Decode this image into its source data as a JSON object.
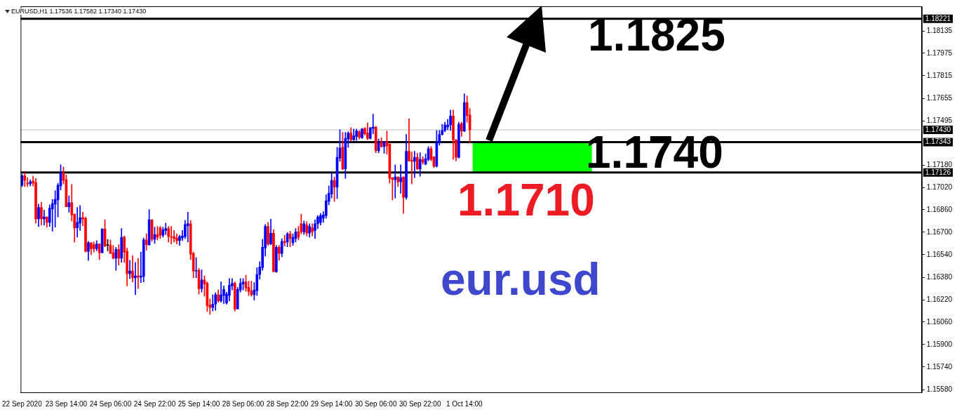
{
  "chart_data": {
    "type": "candlestick",
    "annotations": [
      "EURUSD,H1 1.17536 1.17582 1.17340 1.17430",
      "1.1825",
      "1.1740",
      "1.1710",
      "eur.usd"
    ],
    "colors": [
      "#0000ff",
      "#ff0000",
      "#ff0000",
      "#0000ff",
      "#ff0000",
      "#ff0000",
      "#0000ff",
      "#ff0000",
      "#0000ff",
      "#ff0000",
      "#0000ff",
      "#0000ff",
      "#0000ff",
      "#0000ff",
      "#0000ff",
      "#ff0000",
      "#ff0000",
      "#0000ff",
      "#ff0000",
      "#ff0000",
      "#0000ff",
      "#0000ff",
      "#ff0000",
      "#ff0000",
      "#0000ff",
      "#ff0000",
      "#ff0000",
      "#0000ff",
      "#ff0000",
      "#0000ff",
      "#ff0000",
      "#000000",
      "#ff0000",
      "#ff0000",
      "#0000ff",
      "#ff0000",
      "#0000ff",
      "#ff0000",
      "#ff0000",
      "#0000ff",
      "#ff0000",
      "#0000ff",
      "#ff0000",
      "#0000ff",
      "#0000ff",
      "#ff0000",
      "#0000ff",
      "#ff0000",
      "#0000ff",
      "#ff0000",
      "#ff0000",
      "#0000ff",
      "#0000ff",
      "#ff0000",
      "#ff0000",
      "#ff0000",
      "#ff0000",
      "#0000ff",
      "#0000ff",
      "#0000ff",
      "#0000ff",
      "#ff0000",
      "#ff0000",
      "#0000ff",
      "#ff0000",
      "#0000ff",
      "#ff0000",
      "#ff0000",
      "#ff0000",
      "#0000ff",
      "#0000ff",
      "#ff0000",
      "#0000ff",
      "#0000ff",
      "#0000ff",
      "#0000ff",
      "#0000ff",
      "#ff0000",
      "#0000ff",
      "#0000ff",
      "#0000ff",
      "#ff0000",
      "#ff0000",
      "#ff0000",
      "#0000ff",
      "#0000ff",
      "#0000ff",
      "#0000ff",
      "#0000ff",
      "#ff0000",
      "#0000ff",
      "#ff0000",
      "#0000ff",
      "#ff0000",
      "#0000ff",
      "#ff0000",
      "#0000ff",
      "#ff0000",
      "#0000ff",
      "#0000ff",
      "#ff0000",
      "#ff0000",
      "#0000ff",
      "#ff0000",
      "#0000ff",
      "#ff0000",
      "#0000ff",
      "#0000ff",
      "#0000ff",
      "#0000ff",
      "#0000ff",
      "#0000ff",
      "#0000ff",
      "#ff0000",
      "#0000ff",
      "#0000ff",
      "#ff0000",
      "#0000ff",
      "#0000ff",
      "#ff0000",
      "#0000ff",
      "#0000ff",
      "#ff0000",
      "#0000ff",
      "#ff0000",
      "#ff0000",
      "#0000ff",
      "#0000ff",
      "#ff0000",
      "#0000ff",
      "#ff0000",
      "#0000ff",
      "#ff0000",
      "#ff0000",
      "#ff0000",
      "#0000ff",
      "#ff0000",
      "#0000ff",
      "#ff0000",
      "#0000ff",
      "#ff0000",
      "#ff0000",
      "#0000ff",
      "#ff0000",
      "#0000ff",
      "#ff0000",
      "#0000ff",
      "#0000ff",
      "#ff0000",
      "#ff0000",
      "#0000ff",
      "#0000ff",
      "#0000ff",
      "#0000ff",
      "#0000ff",
      "#0000ff",
      "#ff0000",
      "#ff0000",
      "#0000ff",
      "#ff0000",
      "#0000ff",
      "#ff0000",
      "#ff0000",
      null,
      null,
      null,
      null,
      null,
      null,
      null,
      null,
      null,
      null,
      null,
      null,
      null,
      null,
      null,
      null,
      null,
      null,
      null,
      null,
      null,
      null,
      null,
      null,
      null,
      null,
      null,
      null,
      null,
      null,
      null,
      null,
      null,
      null,
      null,
      null,
      null,
      null,
      null,
      null,
      null,
      null,
      null,
      null,
      null,
      null,
      null,
      null,
      null,
      null,
      null,
      null,
      null,
      null,
      null,
      null,
      null,
      null,
      null,
      null,
      null,
      null,
      null,
      null,
      null,
      null,
      null,
      null,
      null,
      null,
      null,
      null,
      null,
      null,
      null,
      null,
      null,
      null,
      null,
      null,
      null,
      null,
      null,
      null,
      null,
      null,
      null,
      null,
      null,
      null,
      null,
      null,
      null,
      null,
      null,
      null,
      null,
      null,
      null,
      null,
      null,
      null,
      null,
      null,
      null,
      null,
      null,
      null,
      null,
      null,
      null,
      null,
      null,
      null,
      null,
      null,
      null,
      null,
      null,
      null,
      null,
      null,
      null,
      null,
      null,
      null,
      null,
      null,
      null,
      null,
      null,
      null,
      null,
      null,
      null,
      null,
      null,
      null,
      null,
      null,
      null,
      null,
      null,
      null,
      null,
      null,
      null,
      null,
      null,
      null,
      null,
      null,
      null,
      null,
      null,
      null,
      null,
      null,
      null,
      null,
      null,
      null,
      null
    ],
    "ylim": [
      1.1556,
      1.1831
    ],
    "yticks": [
      1.18135,
      1.17975,
      1.17815,
      1.17655,
      1.17495,
      {
        "value": 1.1718,
        "label": "1.17180"
      },
      {
        "value": 1.1702,
        "label": "1.17020"
      },
      {
        "value": 1.1686,
        "label": "1.16860"
      },
      {
        "value": 1.167,
        "label": "1.16700"
      },
      {
        "value": 1.1654,
        "label": "1.16540"
      },
      {
        "value": 1.1638,
        "label": "1.16380"
      },
      {
        "value": 1.1622,
        "label": "1.16220"
      },
      {
        "value": 1.1606,
        "label": "1.16060"
      },
      {
        "value": 1.159,
        "label": "1.15900"
      },
      {
        "value": 1.1574,
        "label": "1.15740"
      },
      {
        "value": 1.1558,
        "label": "1.15580"
      }
    ],
    "ref_lines": [
      {
        "axis": "y",
        "value": 1.18221,
        "label": "1.18221",
        "color": "#000000"
      },
      {
        "axis": "y",
        "value": 1.1743,
        "label": "1.17430",
        "color": "#c0c0c0"
      },
      {
        "axis": "y",
        "value": 1.17343,
        "label": "1.17343",
        "color": "#000000"
      },
      {
        "axis": "y",
        "value": 1.17126,
        "label": "1.17126",
        "color": "#000000"
      }
    ],
    "bands": [
      {
        "axis": "y",
        "from": 1.17126,
        "to": 1.17343,
        "color": "#00ff00"
      }
    ],
    "categories": [
      "22 Sep 2020",
      null,
      null,
      null,
      null,
      null,
      null,
      null,
      null,
      null,
      null,
      null,
      null,
      null,
      null,
      null,
      "23 Sep 14:00",
      null,
      null,
      null,
      null,
      null,
      null,
      null,
      null,
      null,
      null,
      null,
      null,
      null,
      null,
      null,
      "24 Sep 06:00",
      null,
      null,
      null,
      null,
      null,
      null,
      null,
      null,
      null,
      null,
      null,
      null,
      null,
      null,
      null,
      "24 Sep 22:00",
      null,
      null,
      null,
      null,
      null,
      null,
      null,
      null,
      null,
      null,
      null,
      null,
      null,
      null,
      null,
      "25 Sep 14:00",
      null,
      null,
      null,
      null,
      null,
      null,
      null,
      null,
      null,
      null,
      null,
      null,
      null,
      null,
      null,
      "28 Sep 06:00",
      null,
      null,
      null,
      null,
      null,
      null,
      null,
      null,
      null,
      null,
      null,
      null,
      null,
      null,
      null,
      "28 Sep 22:00",
      null,
      null,
      null,
      null,
      null,
      null,
      null,
      null,
      null,
      null,
      null,
      null,
      null,
      null,
      null,
      "29 Sep 14:00",
      null,
      null,
      null,
      null,
      null,
      null,
      null,
      null,
      null,
      null,
      null,
      null,
      null,
      null,
      null,
      "30 Sep 06:00",
      null,
      null,
      null,
      null,
      null,
      null,
      null,
      null,
      null,
      null,
      null,
      null,
      null,
      null,
      null,
      "30 Sep 22:00",
      null,
      null,
      null,
      null,
      null,
      null,
      null,
      null,
      null,
      null,
      null,
      null,
      null,
      null,
      null,
      "1 Oct 14:00",
      null,
      null,
      null,
      null,
      null,
      null,
      null,
      null,
      null,
      null,
      null,
      null,
      null,
      null,
      null,
      null,
      null,
      null,
      null,
      null,
      null,
      null,
      null,
      null,
      null,
      null,
      null,
      null,
      null,
      null,
      null,
      null,
      null,
      null,
      null,
      null,
      null,
      null,
      null,
      null,
      null,
      null,
      null,
      null,
      null,
      null,
      null,
      null,
      null,
      null,
      null,
      null,
      null,
      null,
      null,
      null,
      null,
      null,
      null,
      null,
      null,
      null,
      null,
      null,
      null,
      null,
      null,
      null,
      null,
      null,
      null,
      null,
      null,
      null,
      null,
      null,
      null,
      null,
      null,
      null,
      null,
      null,
      null,
      null,
      null,
      null,
      null,
      null,
      null,
      null,
      null,
      null,
      null,
      null,
      null,
      null,
      null,
      null,
      null,
      null,
      null,
      null,
      null,
      null,
      null,
      null,
      null,
      null,
      null,
      null,
      null,
      null,
      null,
      null,
      null,
      null,
      null,
      null,
      null,
      null,
      null,
      null,
      null,
      null,
      null,
      null,
      null,
      null,
      null,
      null,
      null,
      null,
      null,
      null,
      null,
      null,
      null,
      null,
      null,
      null,
      null,
      null,
      null,
      null,
      null,
      null,
      null,
      null,
      null,
      null,
      null,
      null,
      null,
      null,
      null,
      null,
      null,
      null,
      null,
      null,
      null,
      null,
      null,
      null,
      null
    ],
    "ohlc": [
      [
        1.17036,
        1.17113,
        1.17026,
        1.17103
      ],
      [
        1.17103,
        1.17123,
        1.17026,
        1.1707
      ],
      [
        1.1705,
        1.17089,
        1.17026,
        1.17046
      ],
      [
        1.17046,
        1.17075,
        1.17031,
        1.1706
      ],
      [
        1.17065,
        1.17099,
        1.17031,
        1.1705
      ],
      [
        1.17055,
        1.17084,
        1.16766,
        1.16795
      ],
      [
        1.16795,
        1.16901,
        1.16742,
        1.16877
      ],
      [
        1.16877,
        1.16915,
        1.16752,
        1.16795
      ],
      [
        1.16795,
        1.16858,
        1.16752,
        1.16809
      ],
      [
        1.16809,
        1.16809,
        1.16737,
        1.16771
      ],
      [
        1.16771,
        1.16896,
        1.16742,
        1.16872
      ],
      [
        1.16867,
        1.16935,
        1.16708,
        1.16906
      ],
      [
        1.16901,
        1.16997,
        1.16737,
        1.16935
      ],
      [
        1.1693,
        1.1705,
        1.16809,
        1.17036
      ],
      [
        1.17031,
        1.17181,
        1.17002,
        1.17123
      ],
      [
        1.17123,
        1.17166,
        1.17046,
        1.1707
      ],
      [
        1.17075,
        1.17108,
        1.16882,
        1.16882
      ],
      [
        1.16882,
        1.16959,
        1.16843,
        1.16911
      ],
      [
        1.16911,
        1.17041,
        1.16781,
        1.16824
      ],
      [
        1.16829,
        1.16829,
        1.16631,
        1.16732
      ],
      [
        1.16732,
        1.16877,
        1.16665,
        1.16771
      ],
      [
        1.16766,
        1.16891,
        1.16713,
        1.16805
      ],
      [
        1.16805,
        1.16843,
        1.16747,
        1.16795
      ],
      [
        1.168,
        1.16809,
        1.16559,
        1.16564
      ],
      [
        1.16564,
        1.16636,
        1.16501,
        1.16626
      ],
      [
        1.16626,
        1.16626,
        1.1654,
        1.16583
      ],
      [
        1.16612,
        1.16631,
        1.16559,
        1.16583
      ],
      [
        1.16583,
        1.16641,
        1.16568,
        1.16617
      ],
      [
        1.16617,
        1.16617,
        1.16506,
        1.16554
      ],
      [
        1.16554,
        1.16727,
        1.16554,
        1.16723
      ],
      [
        1.16723,
        1.1679,
        1.16597,
        1.16602
      ],
      [
        1.16607,
        1.1665,
        1.16568,
        1.16607
      ],
      [
        1.16607,
        1.16646,
        1.16549,
        1.16549
      ],
      [
        1.16554,
        1.16607,
        1.16511,
        1.16515
      ],
      [
        1.16515,
        1.16593,
        1.16429,
        1.16578
      ],
      [
        1.16578,
        1.16612,
        1.16467,
        1.16515
      ],
      [
        1.16515,
        1.16727,
        1.16486,
        1.16665
      ],
      [
        1.16665,
        1.16674,
        1.16486,
        1.16559
      ],
      [
        1.16564,
        1.16588,
        1.16318,
        1.16405
      ],
      [
        1.16405,
        1.16501,
        1.16371,
        1.16424
      ],
      [
        1.16424,
        1.16535,
        1.16347,
        1.16376
      ],
      [
        1.16376,
        1.16486,
        1.16255,
        1.1639
      ],
      [
        1.1639,
        1.16515,
        1.16299,
        1.1638
      ],
      [
        1.1638,
        1.16559,
        1.16342,
        1.1639
      ],
      [
        1.16385,
        1.1666,
        1.16347,
        1.16646
      ],
      [
        1.16646,
        1.16689,
        1.16573,
        1.16612
      ],
      [
        1.16612,
        1.16862,
        1.16607,
        1.1679
      ],
      [
        1.1679,
        1.1679,
        1.16636,
        1.1665
      ],
      [
        1.1665,
        1.16737,
        1.16621,
        1.16684
      ],
      [
        1.16684,
        1.16742,
        1.16646,
        1.16665
      ],
      [
        1.16732,
        1.16742,
        1.16655,
        1.16679
      ],
      [
        1.16679,
        1.16737,
        1.16665,
        1.16718
      ],
      [
        1.16713,
        1.16766,
        1.16684,
        1.16727
      ],
      [
        1.16727,
        1.16742,
        1.16631,
        1.1667
      ],
      [
        1.1667,
        1.16742,
        1.16617,
        1.16665
      ],
      [
        1.1667,
        1.16713,
        1.16631,
        1.16655
      ],
      [
        1.1666,
        1.16689,
        1.16617,
        1.16641
      ],
      [
        1.16641,
        1.16679,
        1.16607,
        1.1667
      ],
      [
        1.1666,
        1.16713,
        1.16641,
        1.16674
      ],
      [
        1.1667,
        1.16785,
        1.16655,
        1.16756
      ],
      [
        1.16747,
        1.16843,
        1.16631,
        1.16761
      ],
      [
        1.16761,
        1.16785,
        1.16506,
        1.16544
      ],
      [
        1.16549,
        1.16559,
        1.16376,
        1.16424
      ],
      [
        1.16424,
        1.1652,
        1.16376,
        1.16429
      ],
      [
        1.16429,
        1.16443,
        1.1626,
        1.16299
      ],
      [
        1.16299,
        1.16433,
        1.16274,
        1.16361
      ],
      [
        1.16361,
        1.1639,
        1.16245,
        1.16332
      ],
      [
        1.16337,
        1.16347,
        1.16135,
        1.16178
      ],
      [
        1.16183,
        1.16226,
        1.16115,
        1.16164
      ],
      [
        1.16164,
        1.16255,
        1.16139,
        1.16188
      ],
      [
        1.16188,
        1.1627,
        1.16144,
        1.16255
      ],
      [
        1.16255,
        1.16289,
        1.16202,
        1.16212
      ],
      [
        1.16212,
        1.16347,
        1.16202,
        1.16255
      ],
      [
        1.1625,
        1.16318,
        1.16192,
        1.16294
      ],
      [
        1.16197,
        1.16274,
        1.16188,
        1.1626
      ],
      [
        1.1625,
        1.16371,
        1.16212,
        1.16323
      ],
      [
        1.16318,
        1.16371,
        1.16289,
        1.16337
      ],
      [
        1.16337,
        1.16347,
        1.16139,
        1.16154
      ],
      [
        1.16154,
        1.16308,
        1.16154,
        1.16294
      ],
      [
        1.16289,
        1.16371,
        1.16274,
        1.16337
      ],
      [
        1.16332,
        1.16371,
        1.16289,
        1.16347
      ],
      [
        1.16347,
        1.16395,
        1.16279,
        1.16303
      ],
      [
        1.16308,
        1.16352,
        1.1625,
        1.16279
      ],
      [
        1.16284,
        1.16352,
        1.16245,
        1.16255
      ],
      [
        1.16255,
        1.16342,
        1.16217,
        1.16289
      ],
      [
        1.16284,
        1.16448,
        1.1625,
        1.164
      ],
      [
        1.164,
        1.16491,
        1.16366,
        1.16453
      ],
      [
        1.16448,
        1.1665,
        1.16429,
        1.16593
      ],
      [
        1.16588,
        1.16756,
        1.1653,
        1.16742
      ],
      [
        1.16742,
        1.16771,
        1.16607,
        1.16617
      ],
      [
        1.16617,
        1.16795,
        1.16612,
        1.16694
      ],
      [
        1.16694,
        1.16718,
        1.16419,
        1.16419
      ],
      [
        1.16419,
        1.16607,
        1.16414,
        1.16593
      ],
      [
        1.16593,
        1.16607,
        1.16501,
        1.16549
      ],
      [
        1.16549,
        1.16655,
        1.16525,
        1.16636
      ],
      [
        1.16636,
        1.16679,
        1.16602,
        1.16626
      ],
      [
        1.16631,
        1.16699,
        1.16597,
        1.16689
      ],
      [
        1.16689,
        1.16708,
        1.16597,
        1.16655
      ],
      [
        1.16626,
        1.16689,
        1.16607,
        1.16665
      ],
      [
        1.16655,
        1.16727,
        1.16631,
        1.16703
      ],
      [
        1.16703,
        1.16742,
        1.16646,
        1.16665
      ],
      [
        1.16761,
        1.16829,
        1.16689,
        1.16703
      ],
      [
        1.16703,
        1.16781,
        1.16684,
        1.16761
      ],
      [
        1.16752,
        1.16776,
        1.16674,
        1.16694
      ],
      [
        1.16694,
        1.16761,
        1.16665,
        1.16742
      ],
      [
        1.16732,
        1.16761,
        1.16674,
        1.16703
      ],
      [
        1.16713,
        1.1679,
        1.16655,
        1.16761
      ],
      [
        1.16761,
        1.16819,
        1.16727,
        1.16809
      ],
      [
        1.16771,
        1.16834,
        1.16752,
        1.16819
      ],
      [
        1.168,
        1.16848,
        1.16771,
        1.16824
      ],
      [
        1.16819,
        1.16968,
        1.168,
        1.16925
      ],
      [
        1.1692,
        1.17031,
        1.16896,
        1.16978
      ],
      [
        1.16973,
        1.17123,
        1.16944,
        1.1707
      ],
      [
        1.1707,
        1.17094,
        1.1692,
        1.17022
      ],
      [
        1.17022,
        1.17306,
        1.1694,
        1.17234
      ],
      [
        1.17229,
        1.17431,
        1.17205,
        1.17301
      ],
      [
        1.17306,
        1.17412,
        1.17147,
        1.17152
      ],
      [
        1.17152,
        1.17412,
        1.17084,
        1.17369
      ],
      [
        1.17364,
        1.17417,
        1.17306,
        1.17407
      ],
      [
        1.17407,
        1.17446,
        1.17349,
        1.17359
      ],
      [
        1.17359,
        1.17436,
        1.17354,
        1.17388
      ],
      [
        1.17383,
        1.17436,
        1.17354,
        1.17422
      ],
      [
        1.17417,
        1.17426,
        1.17364,
        1.17378
      ],
      [
        1.17373,
        1.17441,
        1.17369,
        1.17436
      ],
      [
        1.17441,
        1.17446,
        1.17393,
        1.17402
      ],
      [
        1.17407,
        1.17479,
        1.17359,
        1.17369
      ],
      [
        1.17369,
        1.17446,
        1.17364,
        1.17446
      ],
      [
        1.17441,
        1.17542,
        1.17402,
        1.1745
      ],
      [
        1.1745,
        1.17455,
        1.17267,
        1.17282
      ],
      [
        1.17282,
        1.17364,
        1.17267,
        1.17335
      ],
      [
        1.17344,
        1.17373,
        1.17306,
        1.17311
      ],
      [
        1.17311,
        1.17344,
        1.17263,
        1.17344
      ],
      [
        1.17344,
        1.17422,
        1.17258,
        1.17316
      ],
      [
        1.1733,
        1.1733,
        1.1705,
        1.17084
      ],
      [
        1.17089,
        1.17089,
        1.1693,
        1.17075
      ],
      [
        1.17075,
        1.17181,
        1.16944,
        1.17094
      ],
      [
        1.17094,
        1.17094,
        1.17026,
        1.1706
      ],
      [
        1.1706,
        1.17181,
        1.16978,
        1.17089
      ],
      [
        1.17094,
        1.17094,
        1.16834,
        1.16949
      ],
      [
        1.16949,
        1.17397,
        1.16935,
        1.17277
      ],
      [
        1.17277,
        1.17508,
        1.17205,
        1.17209
      ],
      [
        1.17214,
        1.17272,
        1.17046,
        1.17205
      ],
      [
        1.17205,
        1.17277,
        1.17089,
        1.17234
      ],
      [
        1.17234,
        1.17263,
        1.17147,
        1.17152
      ],
      [
        1.17152,
        1.17267,
        1.17099,
        1.17219
      ],
      [
        1.17219,
        1.17238,
        1.17185,
        1.172
      ],
      [
        1.17185,
        1.17258,
        1.17181,
        1.17224
      ],
      [
        1.17219,
        1.17311,
        1.17209,
        1.17296
      ],
      [
        1.17296,
        1.17311,
        1.17209,
        1.17219
      ],
      [
        1.17238,
        1.17238,
        1.17161,
        1.17171
      ],
      [
        1.17171,
        1.17426,
        1.17166,
        1.1734
      ],
      [
        1.1734,
        1.17426,
        1.1732,
        1.17397
      ],
      [
        1.17397,
        1.1747,
        1.17393,
        1.17426
      ],
      [
        1.17426,
        1.17484,
        1.17417,
        1.17465
      ],
      [
        1.1745,
        1.17504,
        1.17431,
        1.17465
      ],
      [
        1.17465,
        1.17571,
        1.17426,
        1.17528
      ],
      [
        1.17528,
        1.17571,
        1.17219,
        1.17359
      ],
      [
        1.17359,
        1.17359,
        1.17209,
        1.17234
      ],
      [
        1.17234,
        1.17484,
        1.17229,
        1.1747
      ],
      [
        1.17475,
        1.17484,
        1.17383,
        1.17422
      ],
      [
        1.17422,
        1.17687,
        1.17417,
        1.17624
      ],
      [
        1.17624,
        1.17672,
        1.17484,
        1.17532
      ],
      [
        1.17536,
        1.17582,
        1.1734,
        1.1743
      ],
      null,
      null,
      null,
      null,
      null,
      null,
      null,
      null,
      null,
      null,
      null,
      null,
      null,
      null,
      null,
      null,
      null,
      null,
      null,
      null,
      null,
      null,
      null,
      null,
      null,
      null,
      null,
      null,
      null,
      null,
      null,
      null,
      null,
      null,
      null,
      null,
      null,
      null,
      null,
      null,
      null,
      null,
      null,
      null,
      null,
      null,
      null,
      null,
      null,
      null,
      null,
      null,
      null,
      null,
      null,
      null,
      null,
      null,
      null,
      null,
      null,
      null,
      null,
      null,
      null,
      null,
      null,
      null,
      null,
      null,
      null,
      null,
      null,
      null,
      null,
      null,
      null,
      null,
      null,
      null,
      null,
      null,
      null,
      null,
      null,
      null,
      null,
      null,
      null,
      null,
      null,
      null,
      null,
      null,
      null,
      null,
      null,
      null,
      null,
      null,
      null,
      null,
      null,
      null,
      null,
      null,
      null,
      null,
      null,
      null,
      null,
      null,
      null,
      null,
      null,
      null,
      null,
      null,
      null,
      null,
      null,
      null,
      null,
      null,
      null,
      null,
      null,
      null,
      null,
      null,
      null,
      null,
      null,
      null,
      null,
      null,
      null,
      null,
      null,
      null,
      null,
      null,
      null,
      null,
      null,
      null,
      null,
      null,
      null,
      null,
      null,
      null,
      null,
      null,
      null,
      null,
      null,
      null,
      null,
      null,
      null,
      null,
      null
    ]
  }
}
